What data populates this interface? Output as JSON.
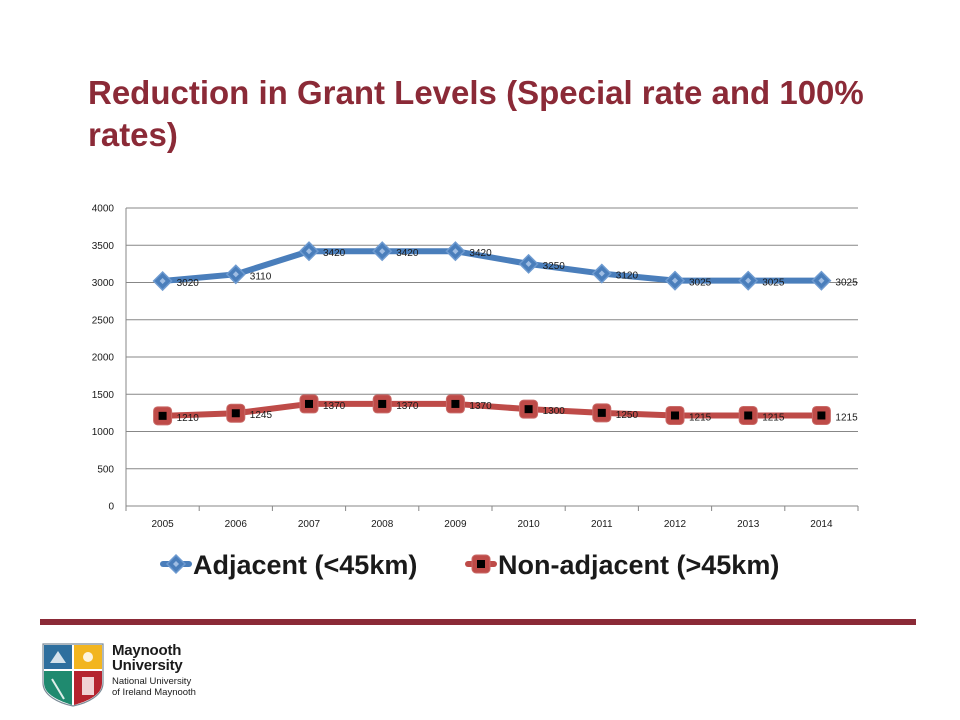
{
  "slide": {
    "title": "Reduction in Grant Levels (Special rate and 100% rates)"
  },
  "chart_data": {
    "type": "line",
    "title": "",
    "xlabel": "",
    "ylabel": "",
    "categories": [
      "2005",
      "2006",
      "2007",
      "2008",
      "2009",
      "2010",
      "2011",
      "2012",
      "2013",
      "2014"
    ],
    "ylim": [
      0,
      4000
    ],
    "yticks": [
      0,
      500,
      1000,
      1500,
      2000,
      2500,
      3000,
      3500,
      4000
    ],
    "grid": true,
    "legend": "bottom",
    "series": [
      {
        "name": "Adjacent (<45km)",
        "values": [
          3020,
          3110,
          3420,
          3420,
          3420,
          3250,
          3120,
          3025,
          3025,
          3025
        ],
        "color": "#4a7ebb",
        "marker": "diamond"
      },
      {
        "name": "Non-adjacent (>45km)",
        "values": [
          1210,
          1245,
          1370,
          1370,
          1370,
          1300,
          1250,
          1215,
          1215,
          1215
        ],
        "color": "#be4b48",
        "marker": "square"
      }
    ]
  },
  "logo": {
    "line1": "Maynooth",
    "line2": "University",
    "line3": "National University",
    "line4": "of Ireland Maynooth",
    "colors": {
      "crest_blue": "#2e6f9e",
      "crest_yellow": "#f2b51f",
      "crest_red": "#b5242f",
      "crest_green": "#1f8a6f"
    }
  }
}
